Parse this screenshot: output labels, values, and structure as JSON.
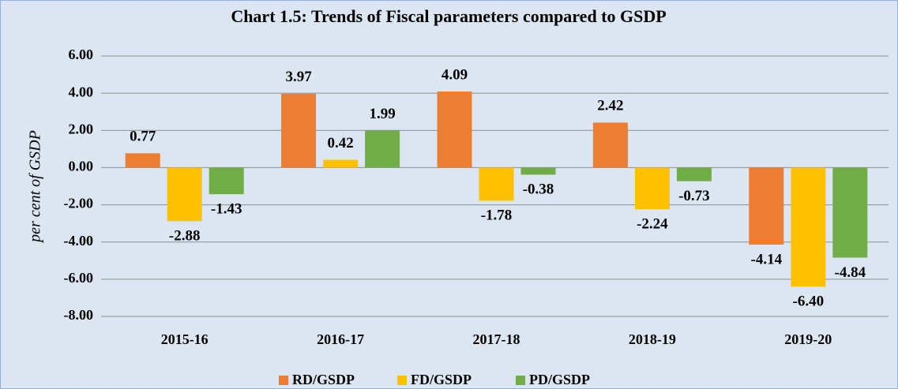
{
  "chart_data": {
    "type": "bar",
    "title": "Chart 1.5: Trends of Fiscal parameters compared to GSDP",
    "y_label": "per cent of  GSDP",
    "categories": [
      "2015-16",
      "2016-17",
      "2017-18",
      "2018-19",
      "2019-20"
    ],
    "series": [
      {
        "name": "RD/GSDP",
        "color": "#ed7d31",
        "values": [
          0.77,
          3.97,
          4.09,
          2.42,
          -4.14
        ],
        "value_labels": [
          "0.77",
          "3.97",
          "4.09",
          "2.42",
          "-4.14"
        ]
      },
      {
        "name": "FD/GSDP",
        "color": "#ffc000",
        "values": [
          -2.88,
          0.42,
          -1.78,
          -2.24,
          -6.4
        ],
        "value_labels": [
          "-2.88",
          "0.42",
          "-1.78",
          "-2.24",
          "-6.40"
        ]
      },
      {
        "name": "PD/GSDP",
        "color": "#70ad47",
        "values": [
          -1.43,
          1.99,
          -0.38,
          -0.73,
          -4.84
        ],
        "value_labels": [
          "-1.43",
          "1.99",
          "-0.38",
          "-0.73",
          "-4.84"
        ]
      }
    ],
    "ylim": [
      -8,
      6
    ],
    "yticks": [
      {
        "value": -8,
        "label": "-8.00"
      },
      {
        "value": -6,
        "label": "-6.00"
      },
      {
        "value": -4,
        "label": "-4.00"
      },
      {
        "value": -2,
        "label": "-2.00"
      },
      {
        "value": 0,
        "label": "0.00"
      },
      {
        "value": 2,
        "label": "2.00"
      },
      {
        "value": 4,
        "label": "4.00"
      },
      {
        "value": 6,
        "label": "6.00"
      }
    ],
    "grid": true,
    "legend": "bottom"
  }
}
